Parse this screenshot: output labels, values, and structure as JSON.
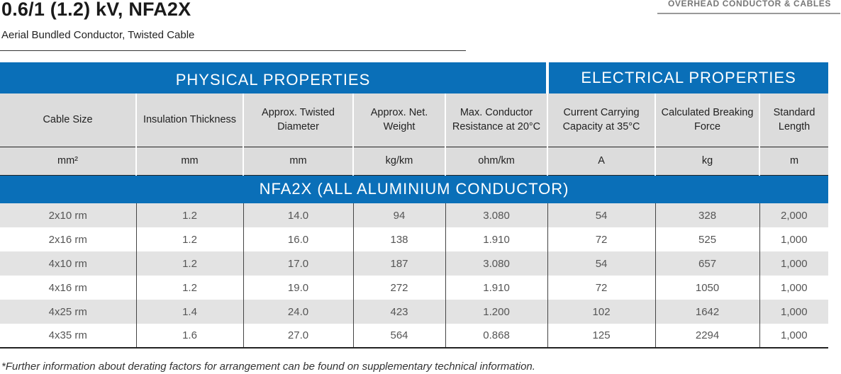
{
  "header": {
    "title": "0.6/1 (1.2) kV, NFA2X",
    "subtitle": "Aerial Bundled Conductor, Twisted Cable",
    "category": "OVERHEAD CONDUCTOR & CABLES"
  },
  "groups": {
    "physical": "PHYSICAL PROPERTIES",
    "electrical": "ELECTRICAL PROPERTIES"
  },
  "columns": [
    {
      "label": "Cable Size",
      "unit": "mm²"
    },
    {
      "label": "Insulation Thickness",
      "unit": "mm"
    },
    {
      "label": "Approx. Twisted Diameter",
      "unit": "mm"
    },
    {
      "label": "Approx. Net. Weight",
      "unit": "kg/km"
    },
    {
      "label": "Max. Conductor Resistance at 20°C",
      "unit": "ohm/km"
    },
    {
      "label": "Current Carrying Capacity at 35°C",
      "unit": "A"
    },
    {
      "label": "Calculated Breaking Force",
      "unit": "kg"
    },
    {
      "label": "Standard Length",
      "unit": "m"
    }
  ],
  "section_title": "NFA2X (ALL ALUMINIUM CONDUCTOR)",
  "rows": [
    [
      "2x10 rm",
      "1.2",
      "14.0",
      "94",
      "3.080",
      "54",
      "328",
      "2,000"
    ],
    [
      "2x16 rm",
      "1.2",
      "16.0",
      "138",
      "1.910",
      "72",
      "525",
      "1,000"
    ],
    [
      "4x10 rm",
      "1.2",
      "17.0",
      "187",
      "3.080",
      "54",
      "657",
      "1,000"
    ],
    [
      "4x16 rm",
      "1.2",
      "19.0",
      "272",
      "1.910",
      "72",
      "1050",
      "1,000"
    ],
    [
      "4x25 rm",
      "1.4",
      "24.0",
      "423",
      "1.200",
      "102",
      "1642",
      "1,000"
    ],
    [
      "4x35 rm",
      "1.6",
      "27.0",
      "564",
      "0.868",
      "125",
      "2294",
      "1,000"
    ]
  ],
  "footnote": "*Further information about derating factors for arrangement can be found on supplementary technical information."
}
